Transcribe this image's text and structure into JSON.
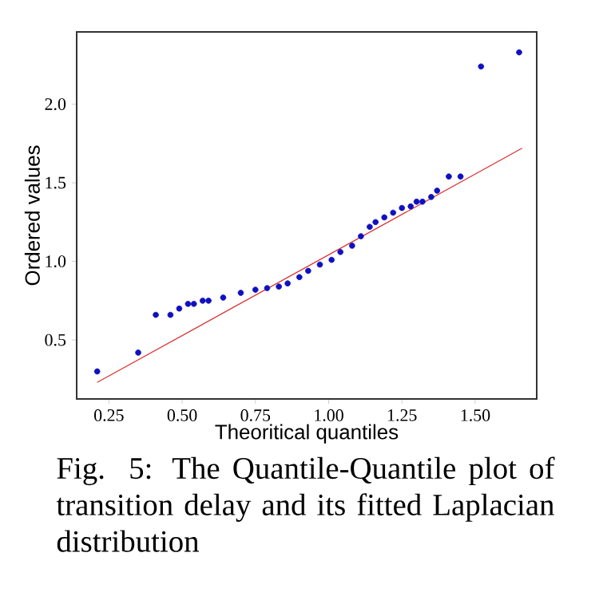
{
  "chart_data": {
    "type": "scatter",
    "xlabel": "Theoritical quantiles",
    "ylabel": "Ordered values",
    "xlim": [
      0.14,
      1.71
    ],
    "ylim": [
      0.125,
      2.46
    ],
    "xticks": [
      {
        "value": 0.25,
        "label": "0.25"
      },
      {
        "value": 0.5,
        "label": "0.50"
      },
      {
        "value": 0.75,
        "label": "0.75"
      },
      {
        "value": 1.0,
        "label": "1.00"
      },
      {
        "value": 1.25,
        "label": "1.25"
      },
      {
        "value": 1.5,
        "label": "1.50"
      }
    ],
    "yticks": [
      {
        "value": 0.5,
        "label": "0.5"
      },
      {
        "value": 1.0,
        "label": "1.0"
      },
      {
        "value": 1.5,
        "label": "1.5"
      },
      {
        "value": 2.0,
        "label": "2.0"
      }
    ],
    "grid": false,
    "marker": "circle",
    "annotations": [
      "Fig. 5: The Quantile-Quantile plot of transition delay and its fitted Laplacian distribution"
    ],
    "series": [
      {
        "color": "#1010c0",
        "x": [
          0.21,
          0.35,
          0.41,
          0.46,
          0.49,
          0.52,
          0.54,
          0.57,
          0.59,
          0.64,
          0.7,
          0.75,
          0.79,
          0.83,
          0.86,
          0.9,
          0.93,
          0.97,
          1.01,
          1.04,
          1.08,
          1.11,
          1.14,
          1.16,
          1.19,
          1.22,
          1.25,
          1.28,
          1.3,
          1.32,
          1.35,
          1.37,
          1.41,
          1.45,
          1.52,
          1.65
        ],
        "values": [
          0.3,
          0.42,
          0.66,
          0.66,
          0.7,
          0.73,
          0.73,
          0.75,
          0.75,
          0.77,
          0.8,
          0.82,
          0.83,
          0.84,
          0.86,
          0.9,
          0.94,
          0.98,
          1.01,
          1.06,
          1.1,
          1.16,
          1.22,
          1.25,
          1.28,
          1.31,
          1.34,
          1.35,
          1.38,
          1.38,
          1.41,
          1.45,
          1.54,
          1.54,
          2.24,
          2.33
        ]
      },
      {
        "type": "line",
        "marker": "none",
        "color": "#d83030",
        "x": [
          0.21,
          1.66
        ],
        "values": [
          0.23,
          1.72
        ]
      }
    ]
  }
}
